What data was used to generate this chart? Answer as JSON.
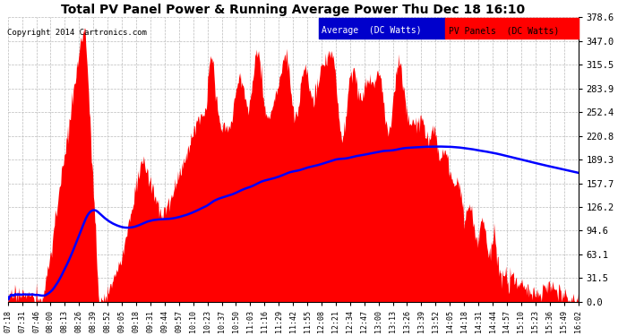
{
  "title": "Total PV Panel Power & Running Average Power Thu Dec 18 16:10",
  "copyright": "Copyright 2014 Cartronics.com",
  "yticks": [
    0.0,
    31.5,
    63.1,
    94.6,
    126.2,
    157.7,
    189.3,
    220.8,
    252.4,
    283.9,
    315.5,
    347.0,
    378.6
  ],
  "ymax": 378.6,
  "fill_color": "#FF0000",
  "avg_color": "#0000FF",
  "background_color": "#FFFFFF",
  "grid_color": "#BBBBBB",
  "legend_avg_label": "Average  (DC Watts)",
  "legend_pv_label": "PV Panels  (DC Watts)",
  "xtick_labels": [
    "07:18",
    "07:31",
    "07:46",
    "08:00",
    "08:13",
    "08:26",
    "08:39",
    "08:52",
    "09:05",
    "09:18",
    "09:31",
    "09:44",
    "09:57",
    "10:10",
    "10:23",
    "10:37",
    "10:50",
    "11:03",
    "11:16",
    "11:29",
    "11:42",
    "11:55",
    "12:08",
    "12:21",
    "12:34",
    "12:47",
    "13:00",
    "13:13",
    "13:26",
    "13:39",
    "13:52",
    "14:05",
    "14:18",
    "14:31",
    "14:44",
    "14:57",
    "15:10",
    "15:23",
    "15:36",
    "15:49",
    "16:02"
  ],
  "n_points": 820
}
